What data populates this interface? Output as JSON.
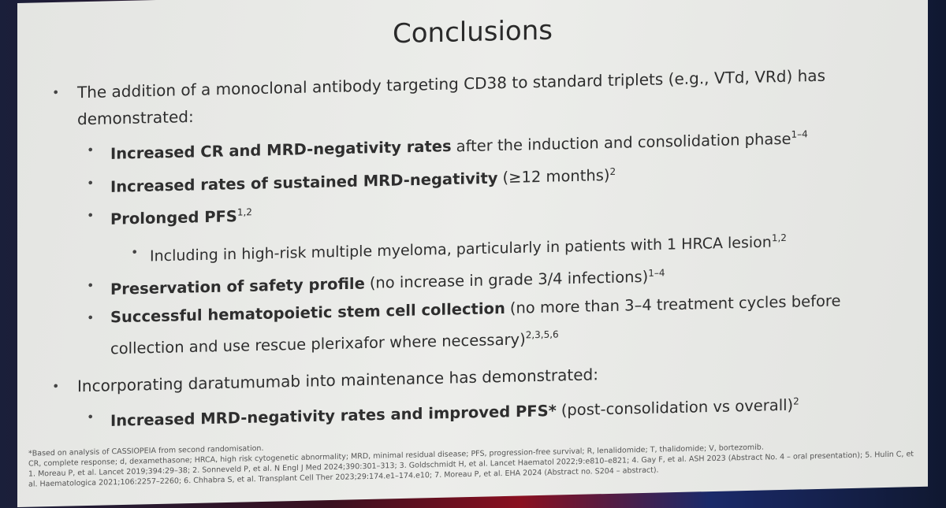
{
  "title": "Conclusions",
  "bullets": [
    {
      "text": "The addition of a monoclonal antibody targeting CD38 to standard triplets (e.g., VTd, VRd) has demonstrated:",
      "sub": [
        {
          "bold": "Increased CR and MRD-negativity rates",
          "text": "after the induction and consolidation phase",
          "sup": "1–4"
        },
        {
          "bold": "Increased rates of sustained MRD-negativity",
          "text": "(≥12 months)",
          "sup": "2"
        },
        {
          "bold": "Prolonged PFS",
          "sup": "1,2",
          "sub": [
            {
              "text": "Including in high-risk multiple myeloma, particularly in patients with 1 HRCA lesion",
              "sup": "1,2"
            }
          ]
        },
        {
          "bold": "Preservation of safety profile",
          "text": "(no increase in grade 3/4 infections)",
          "sup": "1–4"
        },
        {
          "bold": "Successful hematopoietic stem cell collection",
          "text": "(no more than 3–4 treatment cycles before collection and use rescue plerixafor where necessary)",
          "sup": "2,3,5,6"
        }
      ]
    },
    {
      "text": "Incorporating daratumumab into maintenance has demonstrated:",
      "sub": [
        {
          "bold": "Increased MRD-negativity rates and improved PFS*",
          "text": "(post-consolidation vs overall)",
          "sup": "2"
        }
      ]
    }
  ],
  "footnotes": [
    "*Based on analysis of CASSIOPEIA from second randomisation.",
    "CR, complete response; d, dexamethasone; HRCA, high risk cytogenetic abnormality; MRD, minimal residual disease; PFS, progression-free survival; R, lenalidomide; T, thalidomide; V, bortezomib.",
    "1. Moreau P, et al. Lancet 2019;394:29–38; 2. Sonneveld P, et al. N Engl J Med 2024;390:301–313; 3. Goldschmidt H, et al. Lancet Haematol 2022;9:e810–e821; 4. Gay F, et al. ASH 2023 (Abstract No. 4 – oral presentation); 5. Hulin C, et al. Haematologica 2021;106:2257–2260; 6. Chhabra S, et al. Transplant Cell Ther 2023;29:174.e1–174.e10; 7. Moreau P, et al. EHA 2024 (Abstract no. S204 – abstract)."
  ]
}
